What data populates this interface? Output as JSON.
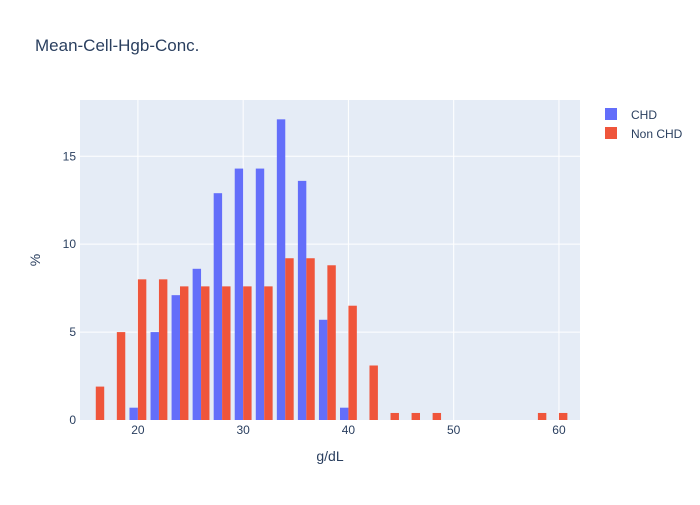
{
  "chart_data": {
    "type": "bar",
    "title": "Mean-Cell-Hgb-Conc.",
    "xlabel": "g/dL",
    "ylabel": "%",
    "xlim": [
      14.5,
      62.0
    ],
    "ylim": [
      0,
      18.2
    ],
    "x_ticks": [
      20,
      30,
      40,
      50,
      60
    ],
    "y_ticks": [
      0,
      5,
      10,
      15
    ],
    "bin_width": 2,
    "bin_centers": [
      16,
      18,
      20,
      22,
      24,
      26,
      28,
      30,
      32,
      34,
      36,
      38,
      40,
      42,
      44,
      46,
      48,
      50,
      52,
      54,
      56,
      58,
      60
    ],
    "grid": true,
    "legend_position": "top-right",
    "series": [
      {
        "name": "CHD",
        "color": "#636efa",
        "values": [
          0,
          0,
          0.7,
          5.0,
          7.1,
          8.6,
          12.9,
          14.3,
          14.3,
          17.1,
          13.6,
          5.7,
          0.7,
          0,
          0,
          0,
          0,
          0,
          0,
          0,
          0,
          0,
          0
        ]
      },
      {
        "name": "Non CHD",
        "color": "#ef553b",
        "values": [
          1.9,
          5.0,
          8.0,
          8.0,
          7.6,
          7.6,
          7.6,
          7.6,
          7.6,
          9.2,
          9.2,
          8.8,
          6.5,
          3.1,
          0.4,
          0.4,
          0.4,
          0,
          0,
          0,
          0,
          0.4,
          0.4
        ]
      }
    ]
  }
}
